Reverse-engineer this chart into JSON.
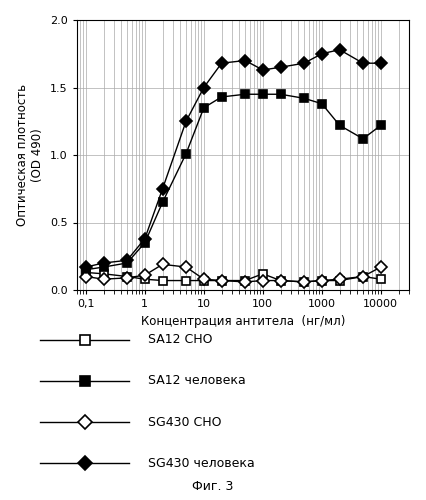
{
  "title": "",
  "xlabel": "Концентрация антитела  (нг/мл)",
  "ylabel": "Оптическая плотность\n(OD 490)",
  "figcaption": "Фиг. 3",
  "xlim": [
    0.07,
    30000
  ],
  "ylim": [
    0,
    2.0
  ],
  "yticks": [
    0,
    0.5,
    1.0,
    1.5,
    2.0
  ],
  "xtick_labels": [
    "0,1",
    "1",
    "10",
    "100",
    "1000",
    "10000"
  ],
  "xtick_values": [
    0.1,
    1,
    10,
    100,
    1000,
    10000
  ],
  "SA12_CHO_x": [
    0.1,
    0.2,
    0.5,
    1.0,
    2.0,
    5.0,
    10,
    20,
    50,
    100,
    200,
    500,
    1000,
    2000,
    5000,
    10000
  ],
  "SA12_CHO_y": [
    0.13,
    0.12,
    0.1,
    0.08,
    0.07,
    0.07,
    0.07,
    0.07,
    0.07,
    0.12,
    0.07,
    0.06,
    0.07,
    0.07,
    0.1,
    0.08
  ],
  "SA12_human_x": [
    0.1,
    0.2,
    0.5,
    1.0,
    2.0,
    5.0,
    10,
    20,
    50,
    100,
    200,
    500,
    1000,
    2000,
    5000,
    10000
  ],
  "SA12_human_y": [
    0.15,
    0.17,
    0.2,
    0.35,
    0.65,
    1.01,
    1.35,
    1.43,
    1.45,
    1.45,
    1.45,
    1.42,
    1.38,
    1.22,
    1.12,
    1.22
  ],
  "SG430_CHO_x": [
    0.1,
    0.2,
    0.5,
    1.0,
    2.0,
    5.0,
    10,
    20,
    50,
    100,
    200,
    500,
    1000,
    2000,
    5000,
    10000
  ],
  "SG430_CHO_y": [
    0.1,
    0.08,
    0.09,
    0.11,
    0.19,
    0.17,
    0.08,
    0.07,
    0.06,
    0.07,
    0.07,
    0.06,
    0.07,
    0.08,
    0.1,
    0.17
  ],
  "SG430_human_x": [
    0.1,
    0.2,
    0.5,
    1.0,
    2.0,
    5.0,
    10,
    20,
    50,
    100,
    200,
    500,
    1000,
    2000,
    5000,
    10000
  ],
  "SG430_human_y": [
    0.17,
    0.2,
    0.22,
    0.38,
    0.75,
    1.25,
    1.5,
    1.68,
    1.7,
    1.63,
    1.65,
    1.68,
    1.75,
    1.78,
    1.68,
    1.68
  ],
  "line_color": "#000000",
  "bg_color": "#ffffff",
  "legend_labels": [
    "SA12 CHO",
    "SA12 человека",
    "SG430 CHO",
    "SG430 человека"
  ]
}
